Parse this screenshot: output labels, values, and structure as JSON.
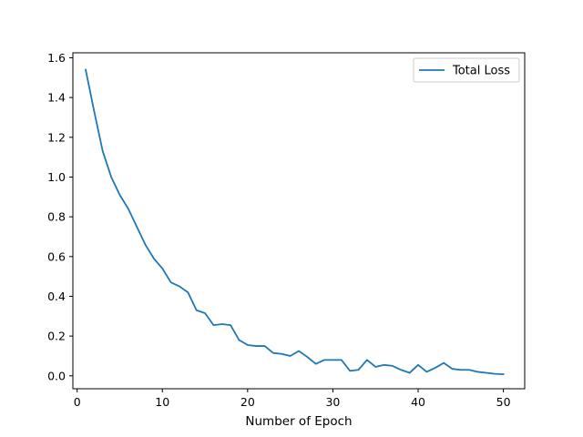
{
  "chart_data": {
    "type": "line",
    "title": "",
    "xlabel": "Number of Epoch",
    "ylabel": "",
    "xlim": [
      -0.5,
      52.5
    ],
    "ylim": [
      -0.065,
      1.625
    ],
    "x_ticks": [
      0,
      10,
      20,
      30,
      40,
      50
    ],
    "y_ticks": [
      0.0,
      0.2,
      0.4,
      0.6,
      0.8,
      1.0,
      1.2,
      1.4,
      1.6
    ],
    "grid": false,
    "legend_position": "top-right",
    "series": [
      {
        "name": "Total Loss",
        "color": "#1f77b4",
        "x": [
          1,
          2,
          3,
          4,
          5,
          6,
          7,
          8,
          9,
          10,
          11,
          12,
          13,
          14,
          15,
          16,
          17,
          18,
          19,
          20,
          21,
          22,
          23,
          24,
          25,
          26,
          27,
          28,
          29,
          30,
          31,
          32,
          33,
          34,
          35,
          36,
          37,
          38,
          39,
          40,
          41,
          42,
          43,
          44,
          45,
          46,
          47,
          48,
          49,
          50
        ],
        "y": [
          1.54,
          1.33,
          1.13,
          1.0,
          0.91,
          0.84,
          0.75,
          0.66,
          0.59,
          0.54,
          0.47,
          0.45,
          0.42,
          0.33,
          0.315,
          0.255,
          0.26,
          0.255,
          0.18,
          0.155,
          0.15,
          0.15,
          0.115,
          0.11,
          0.1,
          0.125,
          0.095,
          0.06,
          0.08,
          0.08,
          0.08,
          0.025,
          0.03,
          0.08,
          0.045,
          0.055,
          0.05,
          0.03,
          0.015,
          0.055,
          0.02,
          0.04,
          0.065,
          0.035,
          0.03,
          0.03,
          0.02,
          0.015,
          0.01,
          0.008
        ]
      }
    ]
  }
}
